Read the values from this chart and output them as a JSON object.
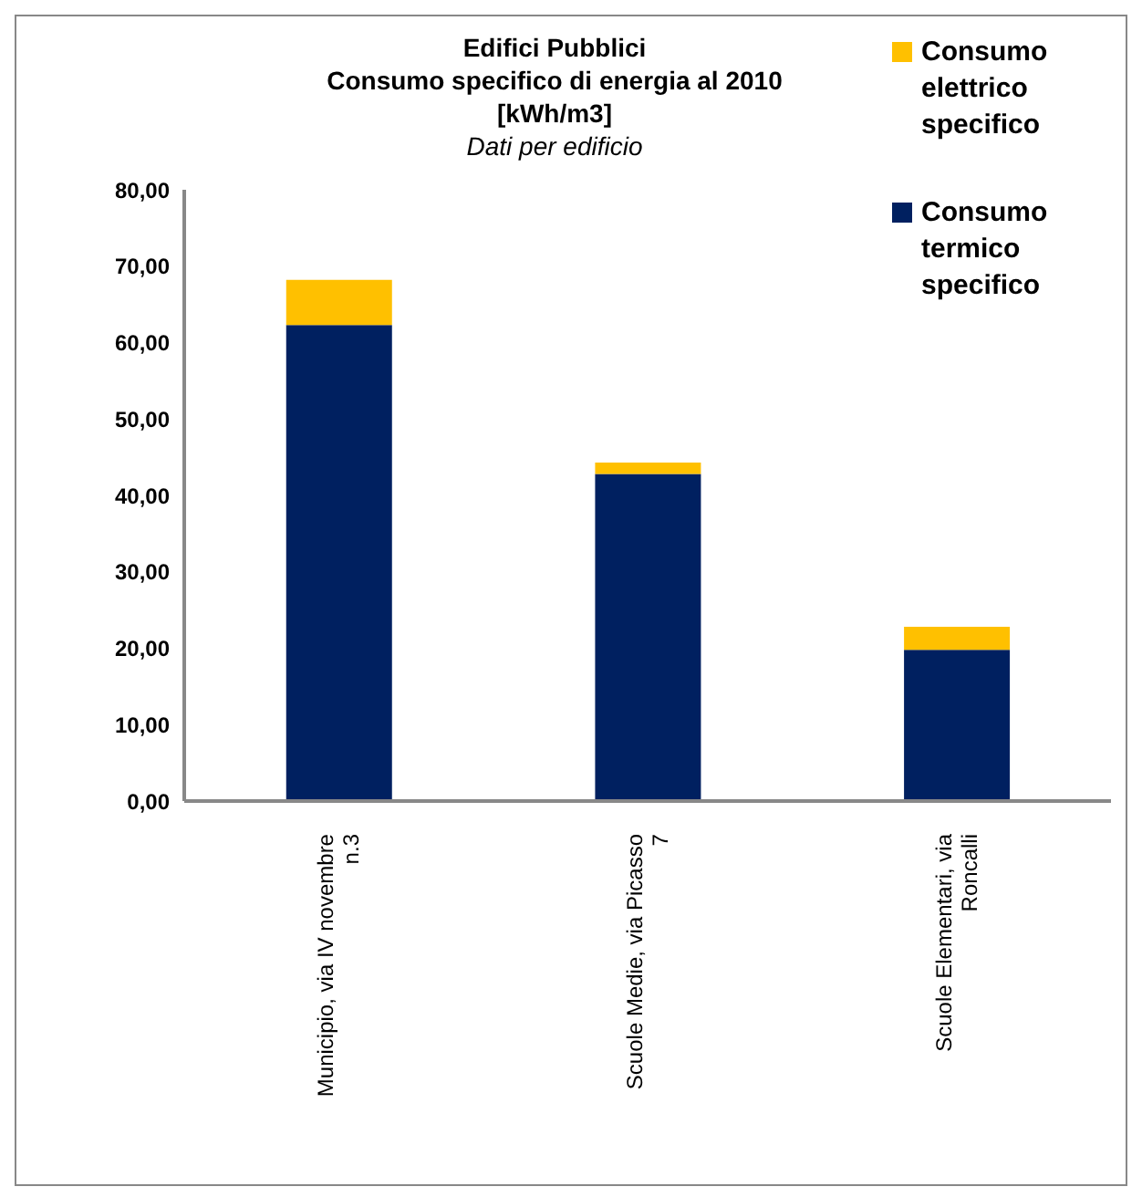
{
  "chart_data": {
    "type": "bar",
    "title": "Edifici Pubblici\nConsumo specifico di energia al 2010\n[kWh/m3]",
    "subtitle": "Dati per edificio",
    "categories": [
      "Municipio, via IV novembre n.3",
      "Scuole Medie, via Picasso 7",
      "Scuole Elementari, via Roncalli"
    ],
    "stacked": true,
    "series": [
      {
        "name": "Consumo termico specifico",
        "color": "#002060",
        "values": [
          62.3,
          42.8,
          19.8
        ]
      },
      {
        "name": "Consumo elettrico specifico",
        "color": "#ffc000",
        "values": [
          5.9,
          1.5,
          3.0
        ]
      }
    ],
    "ylim": [
      0,
      80
    ],
    "yticks": [
      {
        "value": 0,
        "label": "0,00"
      },
      {
        "value": 10,
        "label": "10,00"
      },
      {
        "value": 20,
        "label": "20,00"
      },
      {
        "value": 30,
        "label": "30,00"
      },
      {
        "value": 40,
        "label": "40,00"
      },
      {
        "value": 50,
        "label": "50,00"
      },
      {
        "value": 60,
        "label": "60,00"
      },
      {
        "value": 70,
        "label": "70,00"
      },
      {
        "value": 80,
        "label": "80,00"
      }
    ],
    "grid": false,
    "legend": "top right"
  }
}
